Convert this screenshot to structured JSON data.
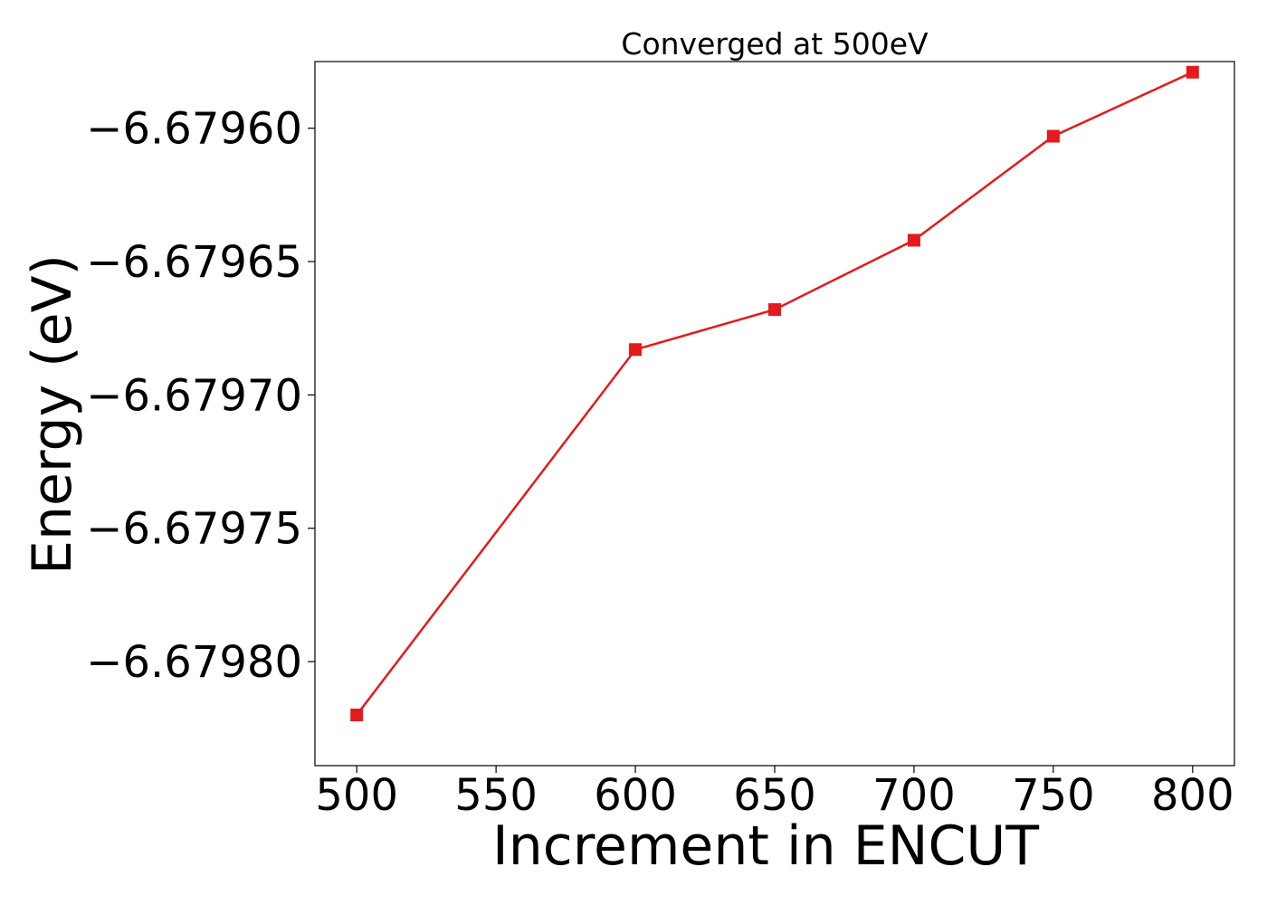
{
  "chart_data": {
    "type": "line",
    "title": "Converged at 500eV",
    "xlabel": "Increment in ENCUT",
    "ylabel": "Energy (eV)",
    "x": [
      500,
      600,
      650,
      700,
      750,
      800
    ],
    "series": [
      {
        "name": "",
        "values": [
          -6.67982,
          -6.679683,
          -6.679668,
          -6.679642,
          -6.679603,
          -6.679579
        ],
        "color": "#e41a1c",
        "marker": "square"
      }
    ],
    "xlim": [
      485,
      815
    ],
    "ylim": [
      -6.679839,
      -6.679575
    ],
    "xticks": [
      500,
      550,
      600,
      650,
      700,
      750,
      800
    ],
    "xtick_labels": [
      "500",
      "550",
      "600",
      "650",
      "700",
      "750",
      "800"
    ],
    "yticks": [
      -6.6798,
      -6.67975,
      -6.6797,
      -6.67965,
      -6.6796
    ],
    "ytick_labels": [
      "−6.67980",
      "−6.67975",
      "−6.67970",
      "−6.67965",
      "−6.67960"
    ],
    "grid": false,
    "legend": "none"
  }
}
